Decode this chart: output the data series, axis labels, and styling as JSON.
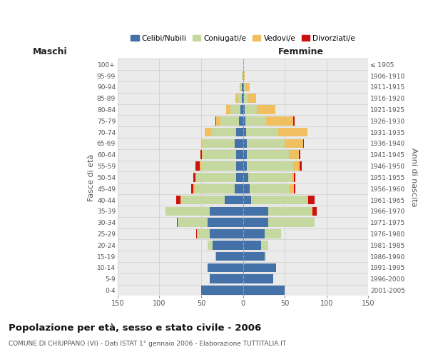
{
  "age_groups": [
    "0-4",
    "5-9",
    "10-14",
    "15-19",
    "20-24",
    "25-29",
    "30-34",
    "35-39",
    "40-44",
    "45-49",
    "50-54",
    "55-59",
    "60-64",
    "65-69",
    "70-74",
    "75-79",
    "80-84",
    "85-89",
    "90-94",
    "95-99",
    "100+"
  ],
  "birth_years": [
    "2001-2005",
    "1996-2000",
    "1991-1995",
    "1986-1990",
    "1981-1985",
    "1976-1980",
    "1971-1975",
    "1966-1970",
    "1961-1965",
    "1956-1960",
    "1951-1955",
    "1946-1950",
    "1941-1945",
    "1936-1940",
    "1931-1935",
    "1926-1930",
    "1921-1925",
    "1916-1920",
    "1911-1915",
    "1906-1910",
    "≤ 1905"
  ],
  "colors": {
    "celibe": "#4472a8",
    "coniugato": "#c5d8a0",
    "vedovo": "#f0c060",
    "divorziato": "#cc1111"
  },
  "male_celibe": [
    50,
    40,
    42,
    32,
    36,
    40,
    42,
    40,
    22,
    10,
    8,
    8,
    8,
    10,
    8,
    5,
    3,
    1,
    1,
    0,
    0
  ],
  "male_coniugato": [
    0,
    0,
    0,
    2,
    6,
    14,
    36,
    52,
    52,
    48,
    48,
    42,
    40,
    38,
    30,
    22,
    12,
    5,
    2,
    1,
    0
  ],
  "male_vedovo": [
    0,
    0,
    0,
    0,
    0,
    1,
    0,
    1,
    1,
    1,
    1,
    2,
    1,
    2,
    8,
    5,
    5,
    3,
    1,
    0,
    0
  ],
  "male_divorziato": [
    0,
    0,
    0,
    0,
    0,
    1,
    1,
    0,
    5,
    3,
    2,
    5,
    2,
    0,
    0,
    1,
    0,
    0,
    0,
    0,
    0
  ],
  "female_nubile": [
    50,
    36,
    40,
    26,
    22,
    26,
    30,
    30,
    10,
    8,
    6,
    5,
    5,
    5,
    4,
    3,
    2,
    1,
    1,
    0,
    0
  ],
  "female_coniugata": [
    0,
    0,
    0,
    2,
    8,
    20,
    56,
    52,
    66,
    48,
    52,
    55,
    50,
    45,
    38,
    25,
    15,
    5,
    2,
    1,
    0
  ],
  "female_vedova": [
    0,
    0,
    0,
    0,
    0,
    0,
    0,
    1,
    2,
    5,
    3,
    8,
    12,
    22,
    35,
    32,
    22,
    10,
    5,
    1,
    0
  ],
  "female_divorziata": [
    0,
    0,
    0,
    0,
    0,
    0,
    0,
    5,
    8,
    2,
    2,
    2,
    2,
    1,
    0,
    2,
    0,
    0,
    0,
    0,
    0
  ],
  "xlim": 150,
  "title": "Popolazione per età, sesso e stato civile - 2006",
  "subtitle": "COMUNE DI CHIUPPANO (VI) - Dati ISTAT 1° gennaio 2006 - Elaborazione TUTTITALIA.IT",
  "ylabel_left": "Fasce di età",
  "ylabel_right": "Anni di nascita",
  "xlabel_left": "Maschi",
  "xlabel_right": "Femmine"
}
